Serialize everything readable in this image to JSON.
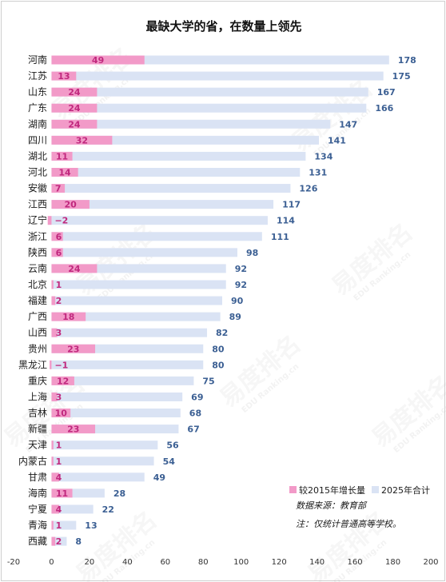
{
  "chart_data": {
    "type": "bar",
    "orientation": "horizontal",
    "title": "最缺大学的省，在数量上领先",
    "categories": [
      "河南",
      "江苏",
      "山东",
      "广东",
      "湖南",
      "四川",
      "湖北",
      "河北",
      "安徽",
      "江西",
      "辽宁",
      "浙江",
      "陕西",
      "云南",
      "北京",
      "福建",
      "广西",
      "山西",
      "贵州",
      "黑龙江",
      "重庆",
      "上海",
      "吉林",
      "新疆",
      "天津",
      "内蒙古",
      "甘肃",
      "海南",
      "宁夏",
      "青海",
      "西藏"
    ],
    "series": [
      {
        "name": "较2015年增长量",
        "color": "#f29ac8",
        "label_color": "#c0287e",
        "values": [
          49,
          13,
          24,
          24,
          24,
          32,
          11,
          14,
          7,
          20,
          -2,
          6,
          6,
          24,
          1,
          2,
          18,
          3,
          23,
          -1,
          12,
          3,
          10,
          23,
          1,
          1,
          4,
          11,
          4,
          1,
          2
        ]
      },
      {
        "name": "2025年合计",
        "color": "#dae3f4",
        "label_color": "#3b5f93",
        "values": [
          178,
          175,
          167,
          166,
          147,
          141,
          134,
          131,
          126,
          117,
          114,
          111,
          98,
          92,
          92,
          90,
          89,
          82,
          80,
          80,
          75,
          69,
          68,
          67,
          56,
          54,
          49,
          28,
          22,
          13,
          8
        ]
      }
    ],
    "xlim": [
      -20,
      200
    ],
    "xticks": [
      -20,
      0,
      20,
      40,
      60,
      80,
      100,
      120,
      140,
      160,
      180,
      200
    ],
    "grid": false,
    "legend_position": "bottom-right"
  },
  "notes": {
    "source": "数据来源：教育部",
    "footnote": "注：仅统计普通高等学校。"
  },
  "watermark": {
    "text": "易度排名",
    "sub": "EDU Ranking.cn"
  }
}
